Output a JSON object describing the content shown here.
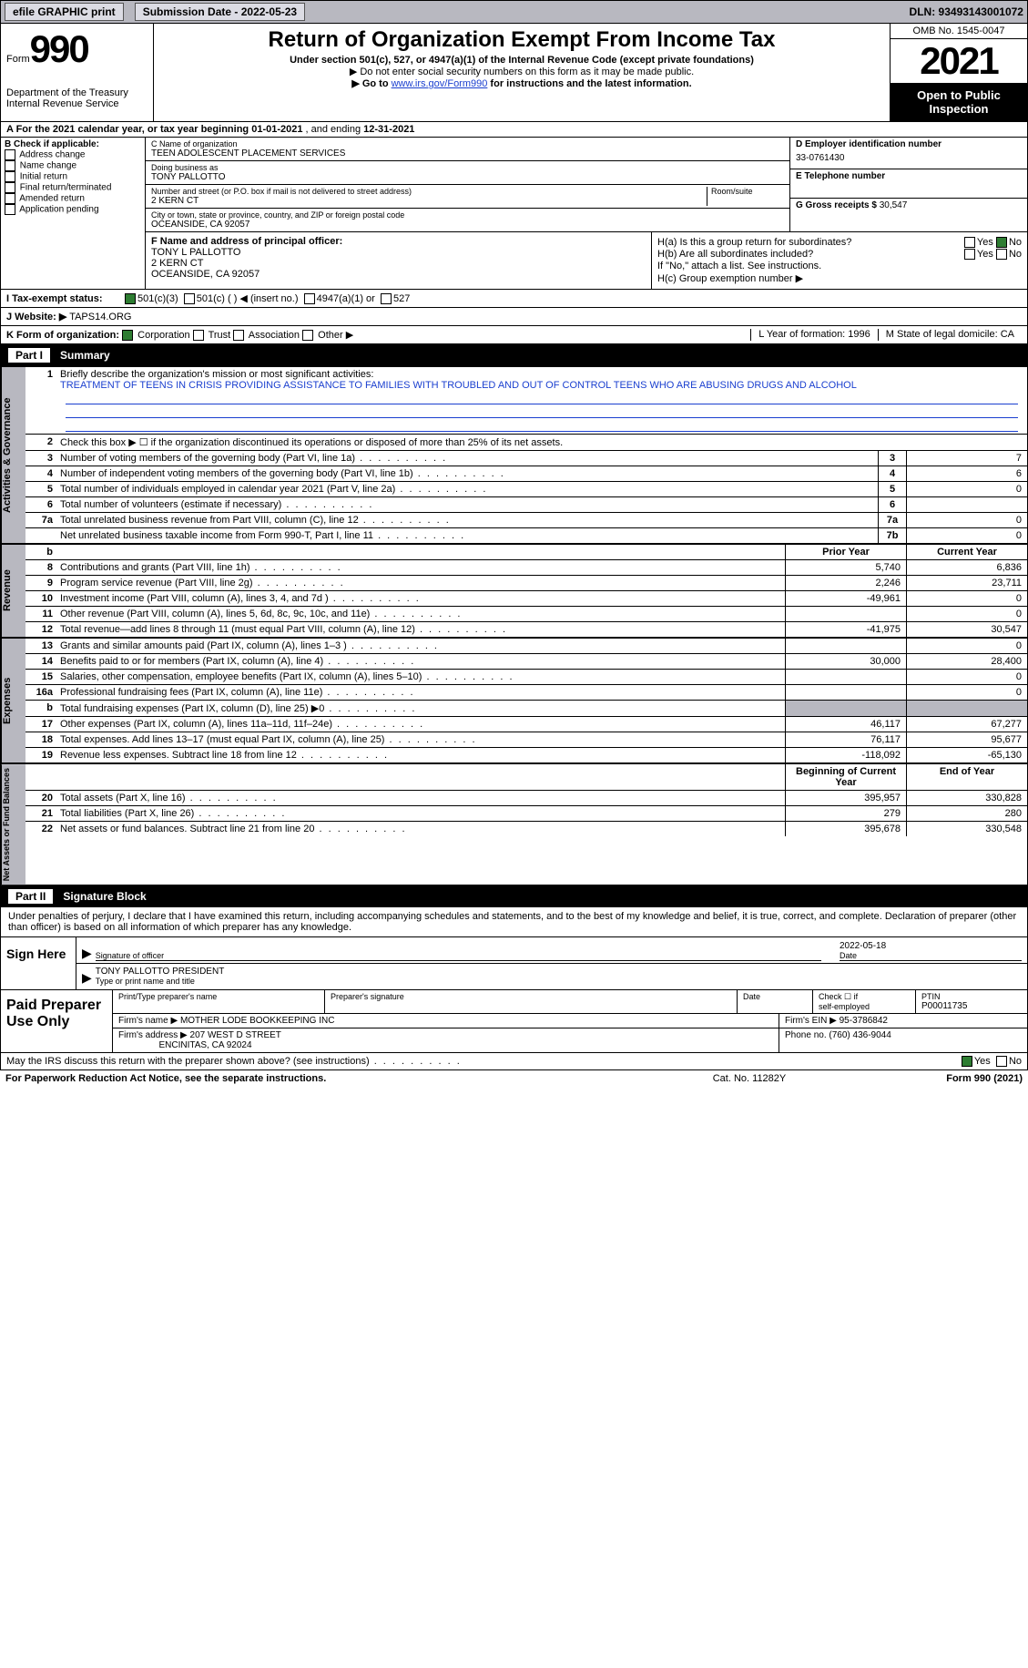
{
  "top": {
    "efile": "efile GRAPHIC print",
    "subdate_lbl": "Submission Date - ",
    "subdate": "2022-05-23",
    "dln_lbl": "DLN: ",
    "dln": "93493143001072"
  },
  "header": {
    "form_word": "Form",
    "form_no": "990",
    "dept": "Department of the Treasury",
    "irs": "Internal Revenue Service",
    "title": "Return of Organization Exempt From Income Tax",
    "sub1": "Under section 501(c), 527, or 4947(a)(1) of the Internal Revenue Code (except private foundations)",
    "sub2": "▶ Do not enter social security numbers on this form as it may be made public.",
    "sub3a": "▶ Go to ",
    "sub3link": "www.irs.gov/Form990",
    "sub3b": " for instructions and the latest information.",
    "omb": "OMB No. 1545-0047",
    "year": "2021",
    "openpub": "Open to Public Inspection"
  },
  "rowA": {
    "text_a": "A For the 2021 calendar year, or tax year beginning ",
    "beg": "01-01-2021",
    "mid": "   , and ending ",
    "end": "12-31-2021"
  },
  "colB": {
    "hdr": "B Check if applicable:",
    "items": [
      "Address change",
      "Name change",
      "Initial return",
      "Final return/terminated",
      "Amended return",
      "Application pending"
    ]
  },
  "colC": {
    "name_lbl": "C Name of organization",
    "name": "TEEN ADOLESCENT PLACEMENT SERVICES",
    "dba_lbl": "Doing business as",
    "dba": "TONY PALLOTTO",
    "addr_lbl": "Number and street (or P.O. box if mail is not delivered to street address)",
    "room_lbl": "Room/suite",
    "addr": "2 KERN CT",
    "city_lbl": "City or town, state or province, country, and ZIP or foreign postal code",
    "city": "OCEANSIDE, CA  92057"
  },
  "colD": {
    "lbl": "D Employer identification number",
    "val": "33-0761430"
  },
  "colE": {
    "lbl": "E Telephone number",
    "val": ""
  },
  "colG": {
    "lbl": "G Gross receipts $",
    "val": "30,547"
  },
  "boxF": {
    "lbl": "F Name and address of principal officer:",
    "l1": "TONY L PALLOTTO",
    "l2": "2 KERN CT",
    "l3": "OCEANSIDE, CA  92057"
  },
  "boxH": {
    "a": "H(a)  Is this a group return for subordinates?",
    "b": "H(b)  Are all subordinates included?",
    "note": "If \"No,\" attach a list. See instructions.",
    "c": "H(c)  Group exemption number ▶",
    "yes": "Yes",
    "no": "No"
  },
  "lineI": {
    "lbl": "I   Tax-exempt status:",
    "o1": "501(c)(3)",
    "o2": "501(c) (  ) ◀ (insert no.)",
    "o3": "4947(a)(1) or",
    "o4": "527"
  },
  "lineJ": {
    "lbl": "J   Website: ▶",
    "val": "TAPS14.ORG"
  },
  "lineK": {
    "lbl": "K Form of organization:",
    "o1": "Corporation",
    "o2": "Trust",
    "o3": "Association",
    "o4": "Other ▶",
    "L": "L Year of formation: 1996",
    "M": "M State of legal domicile: CA"
  },
  "part1": {
    "hdr": "Part I",
    "title": "Summary"
  },
  "p1briefly": {
    "lbl": "Briefly describe the organization's mission or most significant activities:",
    "txt": "TREATMENT OF TEENS IN CRISIS PROVIDING ASSISTANCE TO FAMILIES WITH TROUBLED AND OUT OF CONTROL TEENS WHO ARE ABUSING DRUGS AND ALCOHOL"
  },
  "p1line2": "Check this box ▶ ☐ if the organization discontinued its operations or disposed of more than 25% of its net assets.",
  "ag_rows": [
    {
      "n": "3",
      "t": "Number of voting members of the governing body (Part VI, line 1a)",
      "bx": "3",
      "v": "7"
    },
    {
      "n": "4",
      "t": "Number of independent voting members of the governing body (Part VI, line 1b)",
      "bx": "4",
      "v": "6"
    },
    {
      "n": "5",
      "t": "Total number of individuals employed in calendar year 2021 (Part V, line 2a)",
      "bx": "5",
      "v": "0"
    },
    {
      "n": "6",
      "t": "Total number of volunteers (estimate if necessary)",
      "bx": "6",
      "v": ""
    },
    {
      "n": "7a",
      "t": "Total unrelated business revenue from Part VIII, column (C), line 12",
      "bx": "7a",
      "v": "0"
    },
    {
      "n": "",
      "t": "Net unrelated business taxable income from Form 990-T, Part I, line 11",
      "bx": "7b",
      "v": "0"
    }
  ],
  "colhdrs": {
    "py": "Prior Year",
    "cy": "Current Year",
    "bcy": "Beginning of Current Year",
    "eoy": "End of Year"
  },
  "rev_rows": [
    {
      "n": "8",
      "t": "Contributions and grants (Part VIII, line 1h)",
      "py": "5,740",
      "cy": "6,836"
    },
    {
      "n": "9",
      "t": "Program service revenue (Part VIII, line 2g)",
      "py": "2,246",
      "cy": "23,711"
    },
    {
      "n": "10",
      "t": "Investment income (Part VIII, column (A), lines 3, 4, and 7d )",
      "py": "-49,961",
      "cy": "0"
    },
    {
      "n": "11",
      "t": "Other revenue (Part VIII, column (A), lines 5, 6d, 8c, 9c, 10c, and 11e)",
      "py": "",
      "cy": "0"
    },
    {
      "n": "12",
      "t": "Total revenue—add lines 8 through 11 (must equal Part VIII, column (A), line 12)",
      "py": "-41,975",
      "cy": "30,547"
    }
  ],
  "exp_rows": [
    {
      "n": "13",
      "t": "Grants and similar amounts paid (Part IX, column (A), lines 1–3 )",
      "py": "",
      "cy": "0"
    },
    {
      "n": "14",
      "t": "Benefits paid to or for members (Part IX, column (A), line 4)",
      "py": "30,000",
      "cy": "28,400"
    },
    {
      "n": "15",
      "t": "Salaries, other compensation, employee benefits (Part IX, column (A), lines 5–10)",
      "py": "",
      "cy": "0"
    },
    {
      "n": "16a",
      "t": "Professional fundraising fees (Part IX, column (A), line 11e)",
      "py": "",
      "cy": "0"
    },
    {
      "n": "b",
      "t": "Total fundraising expenses (Part IX, column (D), line 25) ▶0",
      "py": "SHADE",
      "cy": "SHADE"
    },
    {
      "n": "17",
      "t": "Other expenses (Part IX, column (A), lines 11a–11d, 11f–24e)",
      "py": "46,117",
      "cy": "67,277"
    },
    {
      "n": "18",
      "t": "Total expenses. Add lines 13–17 (must equal Part IX, column (A), line 25)",
      "py": "76,117",
      "cy": "95,677"
    },
    {
      "n": "19",
      "t": "Revenue less expenses. Subtract line 18 from line 12",
      "py": "-118,092",
      "cy": "-65,130"
    }
  ],
  "na_rows": [
    {
      "n": "20",
      "t": "Total assets (Part X, line 16)",
      "py": "395,957",
      "cy": "330,828"
    },
    {
      "n": "21",
      "t": "Total liabilities (Part X, line 26)",
      "py": "279",
      "cy": "280"
    },
    {
      "n": "22",
      "t": "Net assets or fund balances. Subtract line 21 from line 20",
      "py": "395,678",
      "cy": "330,548"
    }
  ],
  "sidelabels": {
    "ag": "Activities & Governance",
    "rev": "Revenue",
    "exp": "Expenses",
    "na": "Net Assets or Fund Balances"
  },
  "part2": {
    "hdr": "Part II",
    "title": "Signature Block",
    "decl": "Under penalties of perjury, I declare that I have examined this return, including accompanying schedules and statements, and to the best of my knowledge and belief, it is true, correct, and complete. Declaration of preparer (other than officer) is based on all information of which preparer has any knowledge."
  },
  "sign": {
    "lbl": "Sign Here",
    "sig_lbl": "Signature of officer",
    "date": "2022-05-18",
    "name": "TONY PALLOTTO  PRESIDENT",
    "name_lbl": "Type or print name and title"
  },
  "prep": {
    "lbl": "Paid Preparer Use Only",
    "h1": "Print/Type preparer's name",
    "h2": "Preparer's signature",
    "h3": "Date",
    "h4a": "Check ☐ if",
    "h4b": "self-employed",
    "h5": "PTIN",
    "ptin": "P00011735",
    "firm_lbl": "Firm's name   ▶",
    "firm": "MOTHER LODE BOOKKEEPING INC",
    "ein_lbl": "Firm's EIN ▶",
    "ein": "95-3786842",
    "addr_lbl": "Firm's address ▶",
    "addr1": "207 WEST D STREET",
    "addr2": "ENCINITAS, CA  92024",
    "ph_lbl": "Phone no.",
    "ph": "(760) 436-9044"
  },
  "ftr": {
    "q": "May the IRS discuss this return with the preparer shown above? (see instructions)",
    "yes": "Yes",
    "no": "No",
    "pra": "For Paperwork Reduction Act Notice, see the separate instructions.",
    "cat": "Cat. No. 11282Y",
    "form": "Form 990 (2021)"
  }
}
